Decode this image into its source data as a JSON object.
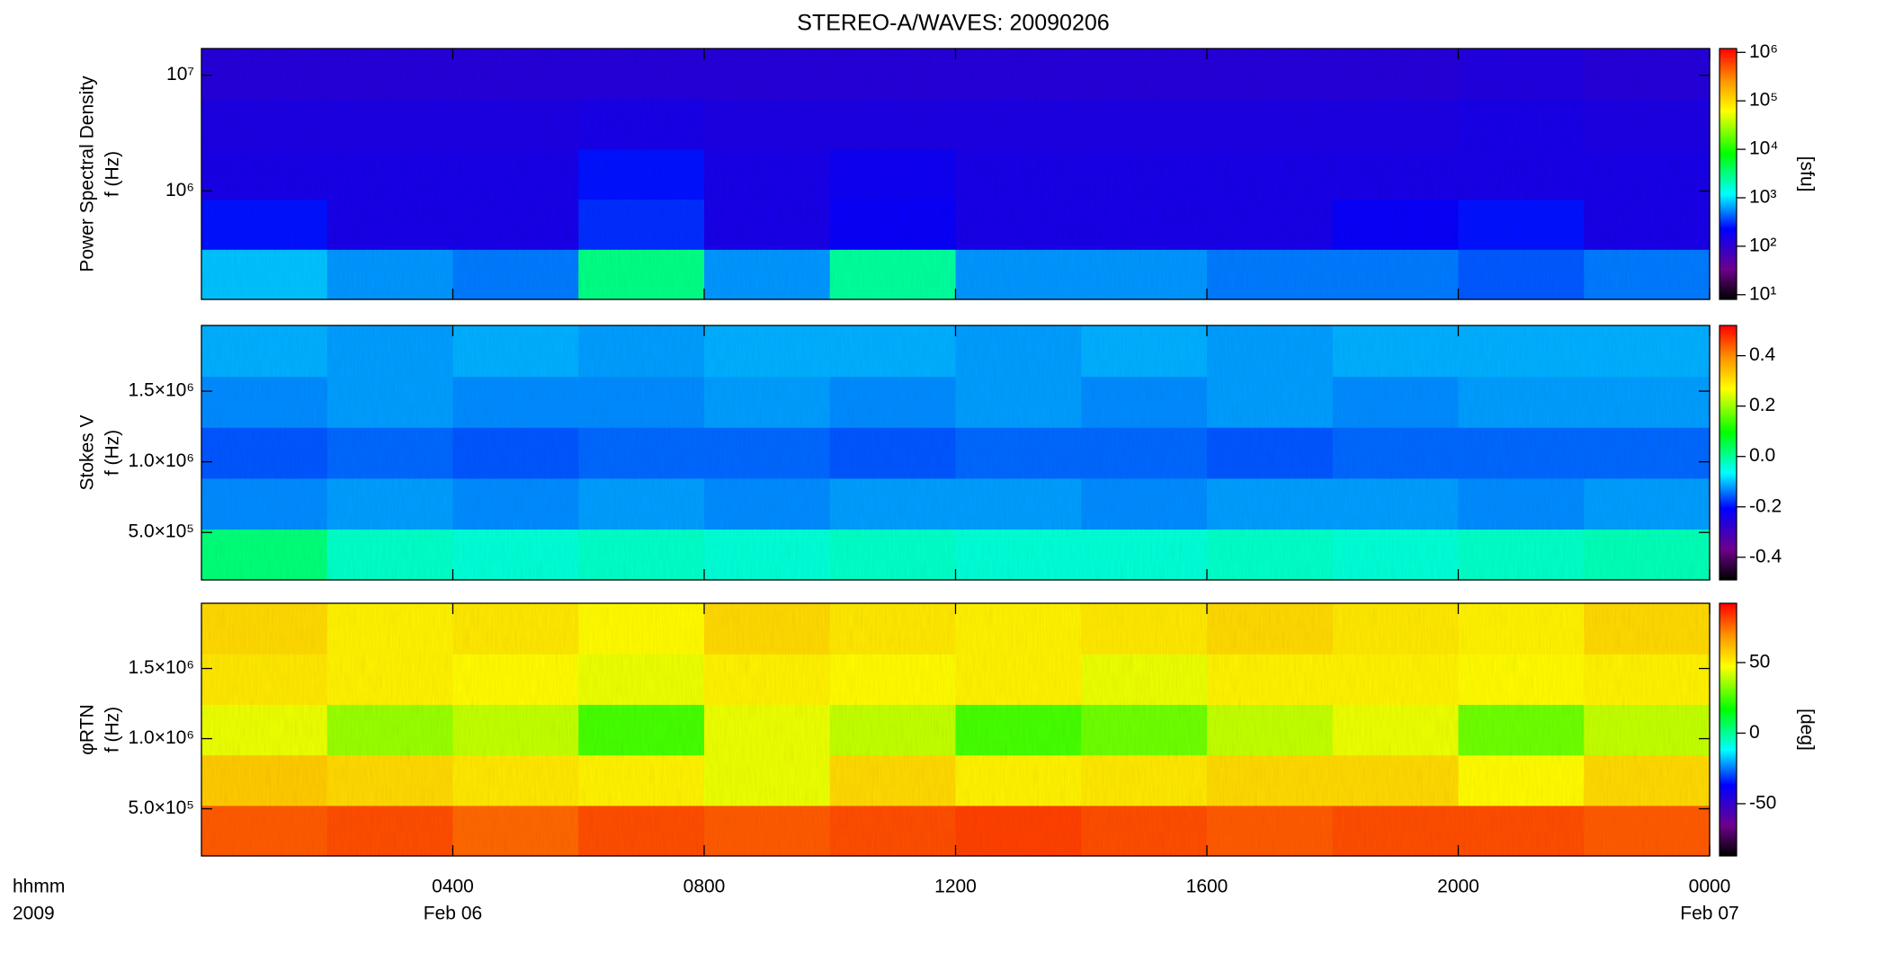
{
  "chart_data": [
    {
      "type": "heatmap",
      "title": "STEREO-A/WAVES: 20090206",
      "ylabel": [
        "Power Spectral Density",
        "f (Hz)"
      ],
      "xlim": [
        0,
        24
      ],
      "ylim": [
        116000,
        17000000
      ],
      "yscale": "log",
      "yticks": [
        {
          "value": 1000000,
          "label": "10⁶"
        },
        {
          "value": 10000000,
          "label": "10⁷"
        }
      ],
      "z": [
        [
          800,
          600,
          500,
          3000,
          600,
          2500,
          600,
          600,
          500,
          500,
          400,
          500
        ],
        [
          250,
          150,
          150,
          300,
          150,
          200,
          150,
          150,
          150,
          200,
          250,
          150
        ],
        [
          150,
          150,
          150,
          250,
          150,
          180,
          150,
          150,
          150,
          150,
          150,
          150
        ],
        [
          140,
          140,
          140,
          150,
          140,
          140,
          140,
          140,
          140,
          140,
          150,
          140
        ],
        [
          120,
          120,
          120,
          120,
          120,
          120,
          120,
          120,
          120,
          120,
          130,
          120
        ]
      ],
      "clim": [
        8,
        1200000
      ],
      "cscale": "log",
      "cticks": [
        {
          "value": 10,
          "label": "10¹"
        },
        {
          "value": 100,
          "label": "10²"
        },
        {
          "value": 1000,
          "label": "10³"
        },
        {
          "value": 10000,
          "label": "10⁴"
        },
        {
          "value": 100000,
          "label": "10⁵"
        },
        {
          "value": 1000000,
          "label": "10⁶"
        }
      ],
      "clabel": "[sfu]"
    },
    {
      "type": "heatmap",
      "ylabel": [
        "Stokes V",
        "f (Hz)"
      ],
      "xlim": [
        0,
        24
      ],
      "ylim": [
        164000,
        1965000
      ],
      "yscale": "linear",
      "yticks": [
        {
          "value": 500000,
          "label": "5.0×10⁵"
        },
        {
          "value": 1000000,
          "label": "1.0×10⁶"
        },
        {
          "value": 1500000,
          "label": "1.5×10⁶"
        }
      ],
      "z": [
        [
          0.02,
          -0.03,
          -0.04,
          -0.03,
          -0.04,
          -0.03,
          -0.04,
          -0.04,
          -0.03,
          -0.04,
          -0.03,
          -0.02
        ],
        [
          -0.13,
          -0.12,
          -0.13,
          -0.12,
          -0.13,
          -0.12,
          -0.12,
          -0.13,
          -0.12,
          -0.12,
          -0.13,
          -0.12
        ],
        [
          -0.16,
          -0.15,
          -0.16,
          -0.15,
          -0.15,
          -0.16,
          -0.15,
          -0.15,
          -0.16,
          -0.15,
          -0.15,
          -0.15
        ],
        [
          -0.13,
          -0.12,
          -0.13,
          -0.13,
          -0.12,
          -0.13,
          -0.12,
          -0.13,
          -0.12,
          -0.13,
          -0.12,
          -0.12
        ],
        [
          -0.11,
          -0.12,
          -0.11,
          -0.12,
          -0.11,
          -0.11,
          -0.12,
          -0.11,
          -0.12,
          -0.11,
          -0.11,
          -0.11
        ]
      ],
      "clim": [
        -0.49,
        0.52
      ],
      "cscale": "linear",
      "cticks": [
        {
          "value": -0.4,
          "label": "-0.4"
        },
        {
          "value": -0.2,
          "label": "-0.2"
        },
        {
          "value": 0,
          "label": "0.0"
        },
        {
          "value": 0.2,
          "label": "0.2"
        },
        {
          "value": 0.4,
          "label": "0.4"
        }
      ]
    },
    {
      "type": "heatmap",
      "ylabel": [
        "φRTN",
        "f (Hz)"
      ],
      "xlim": [
        0,
        24
      ],
      "ylim": [
        164000,
        1965000
      ],
      "yscale": "linear",
      "yticks": [
        {
          "value": 500000,
          "label": "5.0×10⁵"
        },
        {
          "value": 1000000,
          "label": "1.0×10⁶"
        },
        {
          "value": 1500000,
          "label": "1.5×10⁶"
        }
      ],
      "z": [
        [
          78,
          80,
          76,
          80,
          78,
          80,
          82,
          80,
          78,
          80,
          80,
          78
        ],
        [
          58,
          55,
          52,
          50,
          45,
          55,
          50,
          52,
          55,
          55,
          48,
          55
        ],
        [
          45,
          35,
          40,
          25,
          45,
          40,
          25,
          30,
          40,
          45,
          30,
          40
        ],
        [
          52,
          50,
          48,
          45,
          50,
          48,
          50,
          45,
          50,
          50,
          48,
          50
        ],
        [
          55,
          50,
          52,
          48,
          55,
          52,
          50,
          52,
          55,
          52,
          50,
          55
        ]
      ],
      "clim": [
        -87,
        92
      ],
      "cscale": "linear",
      "cticks": [
        -50,
        0,
        50
      ],
      "clabel": "[deg]",
      "xticks": [
        {
          "value": 4,
          "label": "0400"
        },
        {
          "value": 8,
          "label": "0800"
        },
        {
          "value": 12,
          "label": "1200"
        },
        {
          "value": 16,
          "label": "1600"
        },
        {
          "value": 20,
          "label": "2000"
        },
        {
          "value": 24,
          "label": "0000"
        }
      ],
      "xdates": [
        {
          "value": 4,
          "label": "Feb 06"
        },
        {
          "value": 24,
          "label": "Feb 07"
        }
      ],
      "xaxis_legend": [
        "hhmm",
        "2009"
      ]
    }
  ]
}
